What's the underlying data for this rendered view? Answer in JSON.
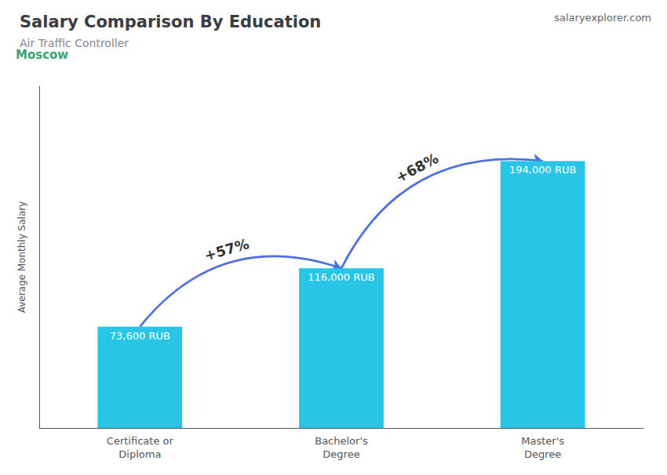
{
  "chart_data": {
    "type": "bar",
    "title": "Salary Comparison By Education",
    "subtitle": "Air Traffic Controller",
    "ylabel": "Average Monthly Salary",
    "categories": [
      "Certificate or\nDiploma",
      "Bachelor's\nDegree",
      "Master's\nDegree"
    ],
    "values": [
      73600,
      116000,
      194000
    ],
    "value_labels": [
      "73,600 RUB",
      "116,000 RUB",
      "194,000 RUB"
    ],
    "data_labels": true,
    "color": "#29c5e6",
    "ylim": [
      0,
      248320
    ],
    "tick_labels": "x",
    "grid": false,
    "annotations": [
      {
        "text": "Moscow"
      },
      {
        "text": "salaryexplorer.com"
      },
      {
        "text": "+57%",
        "from": "Certificate or\nDiploma",
        "to": "Bachelor's\nDegree"
      },
      {
        "text": "+68%",
        "from": "Bachelor's\nDegree",
        "to": "Master's\nDegree"
      }
    ]
  }
}
